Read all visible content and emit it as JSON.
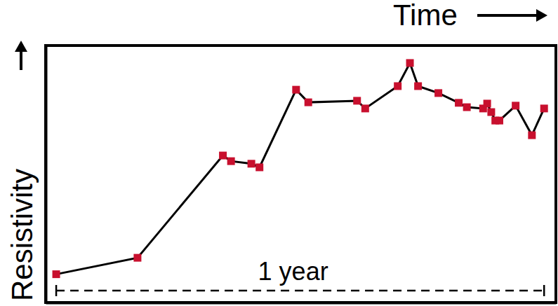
{
  "chart_data": {
    "type": "line",
    "x_label": "Time",
    "y_label": "Resistivity",
    "x": [
      0,
      2.0,
      4.1,
      4.3,
      4.8,
      5.0,
      5.9,
      6.2,
      7.4,
      7.6,
      8.4,
      8.7,
      8.9,
      9.4,
      9.9,
      10.1,
      10.5,
      10.6,
      10.7,
      10.8,
      10.9,
      11.3,
      11.7,
      12.0
    ],
    "values": [
      11,
      17.4,
      57.2,
      55.0,
      54.0,
      52.6,
      82.8,
      77.9,
      78.5,
      75.5,
      84.2,
      93.2,
      84.2,
      81.5,
      77.7,
      76.0,
      75.5,
      77.4,
      74.1,
      70.8,
      70.8,
      76.6,
      65.1,
      75.5
    ],
    "xlim": [
      -0.26,
      12.29
    ],
    "ylim": [
      0,
      100
    ],
    "tick_labels": false,
    "color": "#c8102e",
    "marker": "square",
    "line_style": "solid",
    "annotations": [
      {
        "text": "1 year",
        "span": [
          0,
          12
        ]
      }
    ]
  }
}
